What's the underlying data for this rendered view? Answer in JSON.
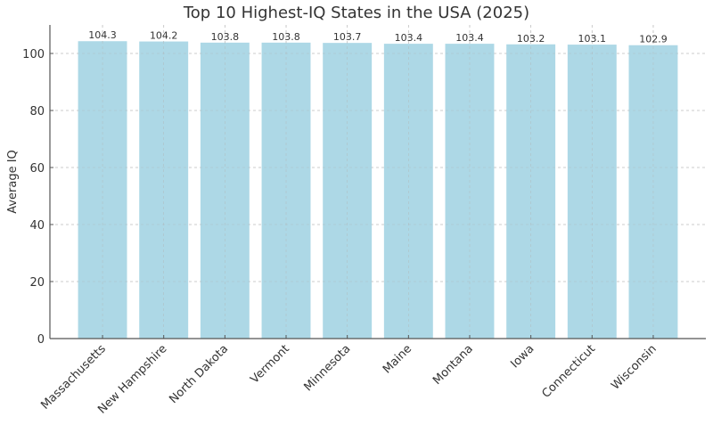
{
  "chart_data": {
    "type": "bar",
    "title": "Top 10 Highest-IQ States in the USA (2025)",
    "xlabel": "",
    "ylabel": "Average IQ",
    "categories": [
      "Massachusetts",
      "New Hampshire",
      "North Dakota",
      "Vermont",
      "Minnesota",
      "Maine",
      "Montana",
      "Iowa",
      "Connecticut",
      "Wisconsin"
    ],
    "values": [
      104.3,
      104.2,
      103.8,
      103.8,
      103.7,
      103.4,
      103.4,
      103.2,
      103.1,
      102.9
    ],
    "value_labels": [
      "104.3",
      "104.2",
      "103.8",
      "103.8",
      "103.7",
      "103.4",
      "103.4",
      "103.2",
      "103.1",
      "102.9"
    ],
    "ylim": [
      0,
      110
    ],
    "yticks": [
      0,
      20,
      40,
      60,
      80,
      100
    ],
    "grid": true,
    "legend": null,
    "bar_color": "#add8e6",
    "x_tick_rotation": 45
  }
}
